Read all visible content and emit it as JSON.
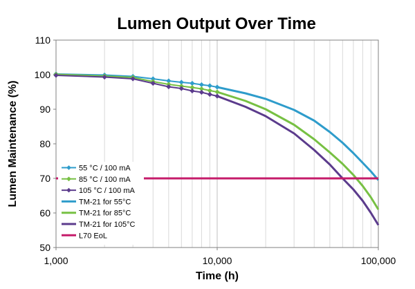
{
  "chart_data": {
    "type": "line",
    "title": "Lumen Output Over Time",
    "xlabel": "Time (h)",
    "ylabel": "Lumen Maintenance (%)",
    "x_scale": "log",
    "xlim": [
      1000,
      100000
    ],
    "ylim": [
      50,
      110
    ],
    "x_ticks": [
      1000,
      10000,
      100000
    ],
    "x_tick_labels": [
      "1,000",
      "10,000",
      "100,000"
    ],
    "y_ticks": [
      50,
      60,
      70,
      80,
      90,
      100,
      110
    ],
    "y_tick_labels": [
      "50",
      "60",
      "70",
      "80",
      "90",
      "100",
      "110"
    ],
    "grid": "vertical minor log gridlines",
    "legend_position": "lower-left",
    "series": [
      {
        "name": "55 °C / 100 mA",
        "style": "line-marker",
        "marker": "diamond",
        "color": "#2E9CCB",
        "x": [
          1000,
          2000,
          3000,
          4000,
          5000,
          6000,
          7000,
          8000,
          9000,
          10000
        ],
        "y": [
          100.2,
          99.9,
          99.5,
          98.8,
          98.2,
          97.8,
          97.5,
          97.1,
          96.8,
          96.4
        ]
      },
      {
        "name": "85 °C / 100 mA",
        "style": "line-marker",
        "marker": "diamond",
        "color": "#77C043",
        "x": [
          1000,
          2000,
          3000,
          4000,
          5000,
          6000,
          7000,
          8000,
          9000,
          10000
        ],
        "y": [
          100.1,
          99.6,
          99.2,
          98.0,
          97.2,
          96.7,
          96.3,
          95.9,
          95.4,
          95.0
        ]
      },
      {
        "name": "105 °C / 100 mA",
        "style": "line-marker",
        "marker": "diamond",
        "color": "#5B3B8C",
        "x": [
          1000,
          2000,
          3000,
          4000,
          5000,
          6000,
          7000,
          8000,
          9000,
          10000
        ],
        "y": [
          99.8,
          99.3,
          98.8,
          97.5,
          96.5,
          96.0,
          95.3,
          94.9,
          94.3,
          93.8
        ]
      },
      {
        "name": "TM-21 for 55°C",
        "style": "line",
        "color": "#2E9CCB",
        "x": [
          10000,
          15000,
          20000,
          30000,
          40000,
          50000,
          60000,
          70000,
          80000,
          90000,
          100000
        ],
        "y": [
          96.4,
          94.6,
          93.0,
          89.8,
          86.7,
          83.4,
          80.3,
          77.3,
          74.5,
          72.0,
          69.5
        ]
      },
      {
        "name": "TM-21 for 85°C",
        "style": "line",
        "color": "#77C043",
        "x": [
          10000,
          15000,
          20000,
          30000,
          40000,
          50000,
          60000,
          70000,
          80000,
          90000,
          100000
        ],
        "y": [
          95.0,
          92.4,
          90.0,
          85.5,
          81.3,
          77.5,
          74.2,
          71.0,
          67.8,
          64.5,
          61.0
        ]
      },
      {
        "name": "TM-21 for 105°C",
        "style": "line",
        "color": "#5B3B8C",
        "x": [
          10000,
          15000,
          20000,
          30000,
          40000,
          50000,
          60000,
          70000,
          80000,
          90000,
          100000
        ],
        "y": [
          93.8,
          90.7,
          88.0,
          83.0,
          78.2,
          74.0,
          70.0,
          66.8,
          63.5,
          60.0,
          56.5
        ]
      },
      {
        "name": "L70 EoL",
        "style": "line",
        "color": "#C51B6A",
        "x": [
          1000,
          100000
        ],
        "y": [
          70,
          70
        ]
      }
    ]
  }
}
